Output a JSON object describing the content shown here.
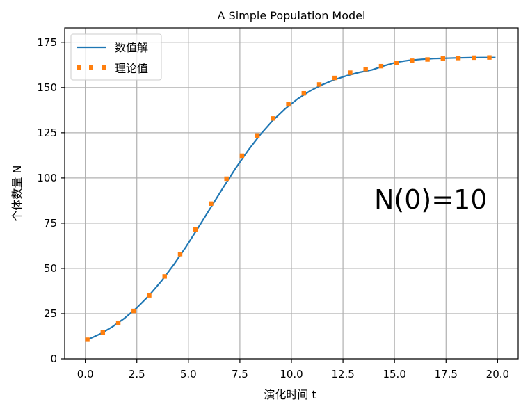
{
  "chart_data": {
    "type": "line",
    "title": "A Simple Population Model",
    "xlabel": "演化时间 t",
    "ylabel": "个体数量 N",
    "xlim": [
      -1.0,
      21.0
    ],
    "ylim": [
      0,
      183
    ],
    "xticks": [
      0.0,
      2.5,
      5.0,
      7.5,
      10.0,
      12.5,
      15.0,
      17.5,
      20.0
    ],
    "xtick_labels": [
      "0.0",
      "2.5",
      "5.0",
      "7.5",
      "10.0",
      "12.5",
      "15.0",
      "17.5",
      "20.0"
    ],
    "yticks": [
      0,
      25,
      50,
      75,
      100,
      125,
      150,
      175
    ],
    "ytick_labels": [
      "0",
      "25",
      "50",
      "75",
      "100",
      "125",
      "150",
      "175"
    ],
    "grid": true,
    "legend_position": "top-left",
    "annotation": "N(0)=10",
    "colors": {
      "numeric": "#1f77b4",
      "theory": "#ff7f0e"
    },
    "series": [
      {
        "name": "数值解",
        "style": "solid-line",
        "x": [
          0.1,
          0.7,
          1.3,
          1.9,
          2.5,
          3.1,
          3.7,
          4.3,
          4.9,
          5.5,
          6.1,
          6.7,
          7.3,
          7.9,
          8.5,
          9.1,
          9.7,
          10.3,
          10.9,
          11.5,
          12.1,
          12.7,
          13.3,
          13.9,
          14.5,
          15.1,
          15.7,
          16.3,
          16.9,
          17.5,
          18.1,
          18.7,
          19.3,
          19.9
        ],
        "y": [
          10.6,
          13.7,
          17.6,
          22.4,
          28.2,
          35.1,
          43.1,
          52.2,
          62.2,
          72.9,
          83.9,
          94.9,
          105.5,
          115.3,
          124.1,
          131.8,
          138.3,
          143.7,
          148.1,
          151.6,
          154.4,
          156.6,
          158.4,
          159.7,
          162.0,
          164.0,
          165.0,
          165.6,
          166.0,
          166.2,
          166.4,
          166.5,
          166.6,
          166.6
        ]
      },
      {
        "name": "理论值",
        "style": "dotted-squares",
        "x": [
          0.1,
          0.85,
          1.6,
          2.35,
          3.1,
          3.85,
          4.6,
          5.35,
          6.1,
          6.85,
          7.6,
          8.35,
          9.1,
          9.85,
          10.6,
          11.35,
          12.1,
          12.85,
          13.6,
          14.35,
          15.1,
          15.85,
          16.6,
          17.35,
          18.1,
          18.85,
          19.6
        ],
        "y": [
          10.6,
          14.6,
          19.8,
          26.5,
          35.1,
          45.6,
          57.9,
          71.6,
          85.8,
          99.6,
          112.3,
          123.5,
          132.9,
          140.7,
          146.8,
          151.7,
          155.3,
          158.2,
          160.2,
          161.8,
          163.5,
          164.8,
          165.5,
          166.0,
          166.3,
          166.5,
          166.6
        ]
      }
    ]
  }
}
